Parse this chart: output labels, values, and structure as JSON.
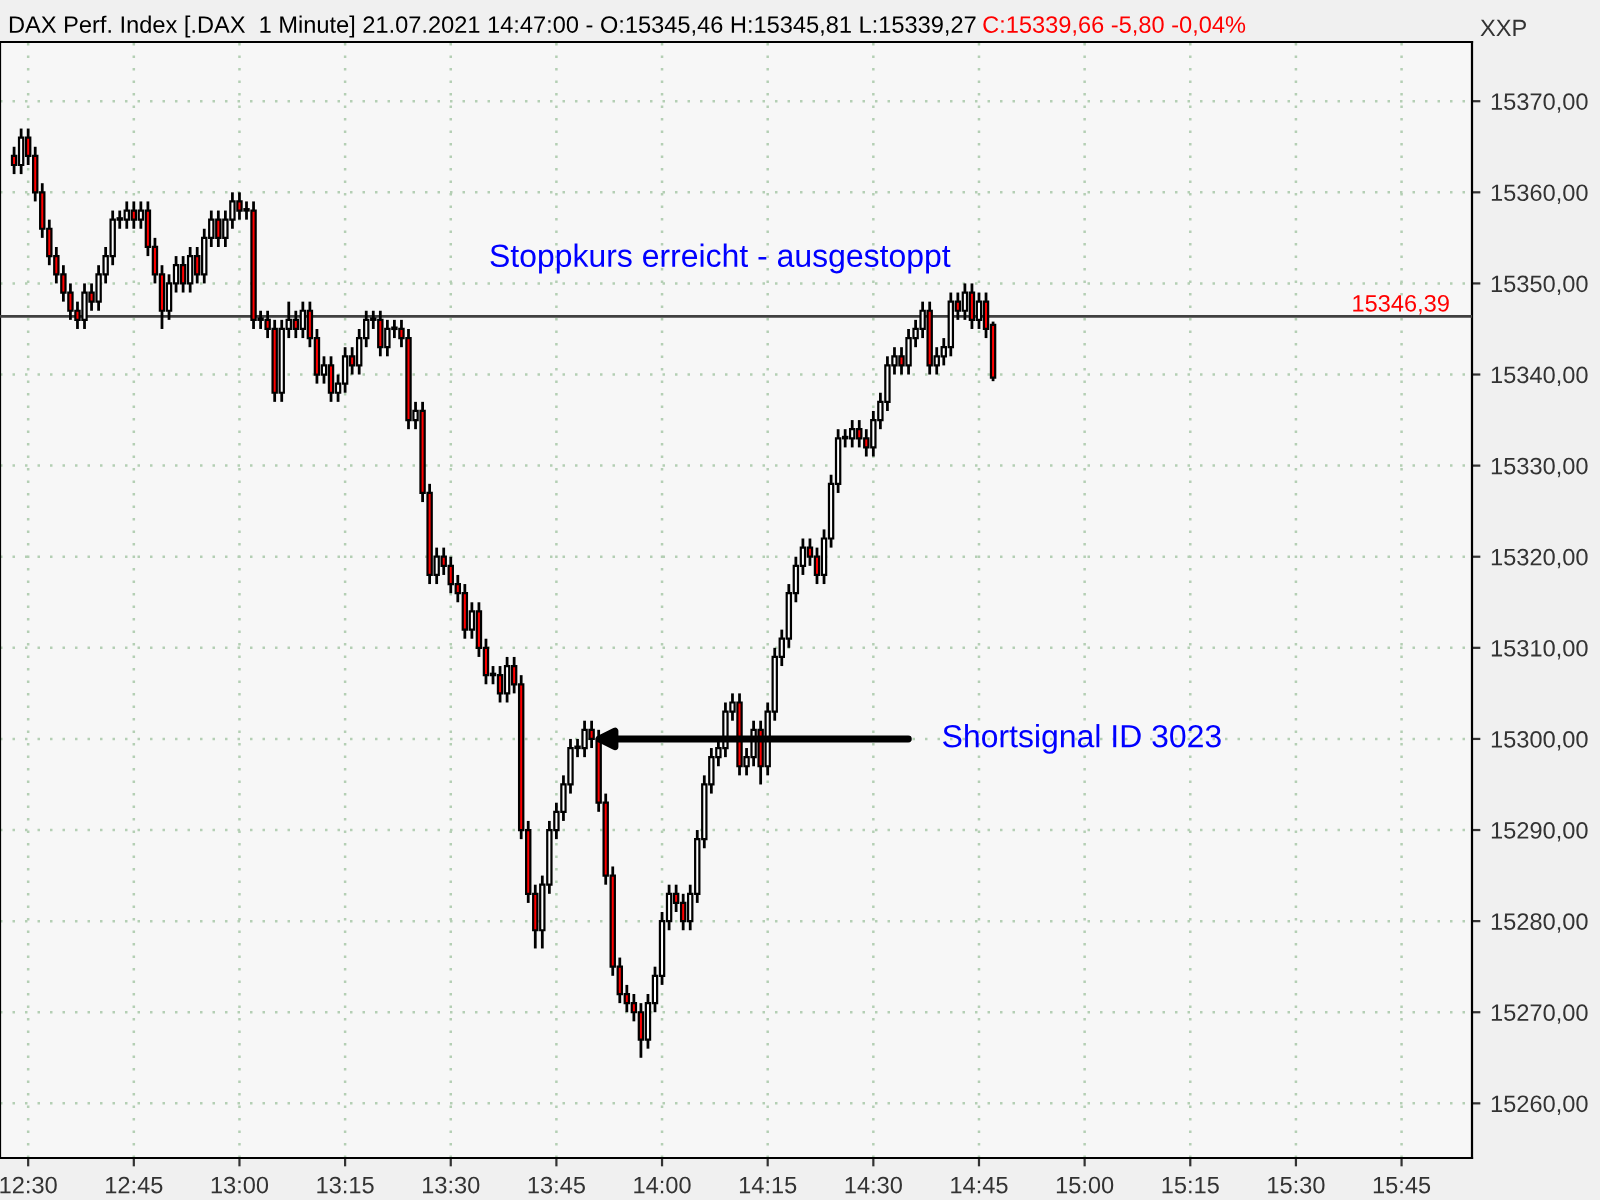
{
  "chart_data": {
    "type": "candlestick",
    "title": "DAX Perf. Index [.DAX  1 Minute] 21.07.2021 14:47:00 - O:15345,46 H:15345,81 L:15339,27",
    "subtitle": "C:15339,66 -5,80 -0,04%",
    "x": [
      "2021-07-21T12:28",
      "2021-07-21T12:29",
      "2021-07-21T12:30",
      "2021-07-21T12:31",
      "2021-07-21T12:32",
      "2021-07-21T12:33",
      "2021-07-21T12:34",
      "2021-07-21T12:35",
      "2021-07-21T12:36",
      "2021-07-21T12:37",
      "2021-07-21T12:38",
      "2021-07-21T12:39",
      "2021-07-21T12:40",
      "2021-07-21T12:41",
      "2021-07-21T12:42",
      "2021-07-21T12:43",
      "2021-07-21T12:44",
      "2021-07-21T12:45",
      "2021-07-21T12:46",
      "2021-07-21T12:47",
      "2021-07-21T12:48",
      "2021-07-21T12:49",
      "2021-07-21T12:50",
      "2021-07-21T12:51",
      "2021-07-21T12:52",
      "2021-07-21T12:53",
      "2021-07-21T12:54",
      "2021-07-21T12:55",
      "2021-07-21T12:56",
      "2021-07-21T12:57",
      "2021-07-21T12:58",
      "2021-07-21T12:59",
      "2021-07-21T13:00",
      "2021-07-21T13:01",
      "2021-07-21T13:02",
      "2021-07-21T13:03",
      "2021-07-21T13:04",
      "2021-07-21T13:05",
      "2021-07-21T13:06",
      "2021-07-21T13:07",
      "2021-07-21T13:08",
      "2021-07-21T13:09",
      "2021-07-21T13:10",
      "2021-07-21T13:11",
      "2021-07-21T13:12",
      "2021-07-21T13:13",
      "2021-07-21T13:14",
      "2021-07-21T13:15",
      "2021-07-21T13:16",
      "2021-07-21T13:17",
      "2021-07-21T13:18",
      "2021-07-21T13:19",
      "2021-07-21T13:20",
      "2021-07-21T13:21",
      "2021-07-21T13:22",
      "2021-07-21T13:23",
      "2021-07-21T13:24",
      "2021-07-21T13:25",
      "2021-07-21T13:26",
      "2021-07-21T13:27",
      "2021-07-21T13:28",
      "2021-07-21T13:29",
      "2021-07-21T13:30",
      "2021-07-21T13:31",
      "2021-07-21T13:32",
      "2021-07-21T13:33",
      "2021-07-21T13:34",
      "2021-07-21T13:35",
      "2021-07-21T13:36",
      "2021-07-21T13:37",
      "2021-07-21T13:38",
      "2021-07-21T13:39",
      "2021-07-21T13:40",
      "2021-07-21T13:41",
      "2021-07-21T13:42",
      "2021-07-21T13:43",
      "2021-07-21T13:44",
      "2021-07-21T13:45",
      "2021-07-21T13:46",
      "2021-07-21T13:47",
      "2021-07-21T13:48",
      "2021-07-21T13:49",
      "2021-07-21T13:50",
      "2021-07-21T13:51",
      "2021-07-21T13:52",
      "2021-07-21T13:53",
      "2021-07-21T13:54",
      "2021-07-21T13:55",
      "2021-07-21T13:56",
      "2021-07-21T13:57",
      "2021-07-21T13:58",
      "2021-07-21T13:59",
      "2021-07-21T14:00",
      "2021-07-21T14:01",
      "2021-07-21T14:02",
      "2021-07-21T14:03",
      "2021-07-21T14:04",
      "2021-07-21T14:05",
      "2021-07-21T14:06",
      "2021-07-21T14:07",
      "2021-07-21T14:08",
      "2021-07-21T14:09",
      "2021-07-21T14:10",
      "2021-07-21T14:11",
      "2021-07-21T14:12",
      "2021-07-21T14:13",
      "2021-07-21T14:14",
      "2021-07-21T14:15",
      "2021-07-21T14:16",
      "2021-07-21T14:17",
      "2021-07-21T14:18",
      "2021-07-21T14:19",
      "2021-07-21T14:20",
      "2021-07-21T14:21",
      "2021-07-21T14:22",
      "2021-07-21T14:23",
      "2021-07-21T14:24",
      "2021-07-21T14:25",
      "2021-07-21T14:26",
      "2021-07-21T14:27",
      "2021-07-21T14:28",
      "2021-07-21T14:29",
      "2021-07-21T14:30",
      "2021-07-21T14:31",
      "2021-07-21T14:32",
      "2021-07-21T14:33",
      "2021-07-21T14:34",
      "2021-07-21T14:35",
      "2021-07-21T14:36",
      "2021-07-21T14:37",
      "2021-07-21T14:38",
      "2021-07-21T14:39",
      "2021-07-21T14:40",
      "2021-07-21T14:41",
      "2021-07-21T14:42",
      "2021-07-21T14:43",
      "2021-07-21T14:44",
      "2021-07-21T14:45",
      "2021-07-21T14:46",
      "2021-07-21T14:47"
    ],
    "ohlc": [
      [
        15364,
        15365,
        15362,
        15363
      ],
      [
        15363,
        15367,
        15362,
        15366
      ],
      [
        15366,
        15367,
        15363,
        15364
      ],
      [
        15364,
        15365,
        15359,
        15360
      ],
      [
        15360,
        15361,
        15355,
        15356
      ],
      [
        15356,
        15357,
        15352,
        15353
      ],
      [
        15353,
        15354,
        15350,
        15351
      ],
      [
        15351,
        15352,
        15348,
        15349
      ],
      [
        15349,
        15350,
        15346,
        15347
      ],
      [
        15347,
        15348,
        15345,
        15346
      ],
      [
        15346,
        15350,
        15345,
        15349
      ],
      [
        15349,
        15350,
        15347,
        15348
      ],
      [
        15348,
        15352,
        15347,
        15351
      ],
      [
        15351,
        15354,
        15350,
        15353
      ],
      [
        15353,
        15358,
        15352,
        15357
      ],
      [
        15357,
        15358,
        15356,
        15357
      ],
      [
        15357,
        15359,
        15356,
        15358
      ],
      [
        15358,
        15359,
        15356,
        15357
      ],
      [
        15357,
        15359,
        15356,
        15358
      ],
      [
        15358,
        15359,
        15353,
        15354
      ],
      [
        15354,
        15355,
        15350,
        15351
      ],
      [
        15351,
        15352,
        15345,
        15347
      ],
      [
        15347,
        15351,
        15346,
        15350
      ],
      [
        15350,
        15353,
        15349,
        15352
      ],
      [
        15352,
        15353,
        15349,
        15350
      ],
      [
        15350,
        15354,
        15349,
        15353
      ],
      [
        15353,
        15354,
        15350,
        15351
      ],
      [
        15351,
        15356,
        15350,
        15355
      ],
      [
        15355,
        15358,
        15354,
        15357
      ],
      [
        15357,
        15358,
        15354,
        15355
      ],
      [
        15355,
        15358,
        15354,
        15357
      ],
      [
        15357,
        15360,
        15356,
        15359
      ],
      [
        15359,
        15360,
        15357,
        15358
      ],
      [
        15358,
        15359,
        15357,
        15358
      ],
      [
        15358,
        15359,
        15345,
        15346
      ],
      [
        15346,
        15347,
        15345,
        15346
      ],
      [
        15346,
        15347,
        15344,
        15345
      ],
      [
        15345,
        15346,
        15337,
        15338
      ],
      [
        15338,
        15346,
        15337,
        15345
      ],
      [
        15345,
        15348,
        15344,
        15346
      ],
      [
        15346,
        15347,
        15344,
        15345
      ],
      [
        15345,
        15348,
        15344,
        15347
      ],
      [
        15347,
        15348,
        15343,
        15344
      ],
      [
        15344,
        15345,
        15339,
        15340
      ],
      [
        15340,
        15342,
        15339,
        15341
      ],
      [
        15341,
        15342,
        15337,
        15338
      ],
      [
        15338,
        15340,
        15337,
        15339
      ],
      [
        15339,
        15343,
        15338,
        15342
      ],
      [
        15342,
        15343,
        15340,
        15341
      ],
      [
        15341,
        15345,
        15340,
        15344
      ],
      [
        15344,
        15347,
        15343,
        15346
      ],
      [
        15346,
        15347,
        15345,
        15346
      ],
      [
        15346,
        15347,
        15342,
        15343
      ],
      [
        15343,
        15346,
        15342,
        15345
      ],
      [
        15345,
        15346,
        15344,
        15345
      ],
      [
        15345,
        15346,
        15343,
        15344
      ],
      [
        15344,
        15345,
        15334,
        15335
      ],
      [
        15335,
        15337,
        15334,
        15336
      ],
      [
        15336,
        15337,
        15326,
        15327
      ],
      [
        15327,
        15328,
        15317,
        15318
      ],
      [
        15318,
        15321,
        15317,
        15320
      ],
      [
        15320,
        15321,
        15318,
        15319
      ],
      [
        15319,
        15320,
        15316,
        15317
      ],
      [
        15317,
        15318,
        15315,
        15316
      ],
      [
        15316,
        15317,
        15311,
        15312
      ],
      [
        15312,
        15315,
        15311,
        15314
      ],
      [
        15314,
        15315,
        15309,
        15310
      ],
      [
        15310,
        15311,
        15306,
        15307
      ],
      [
        15307,
        15308,
        15306,
        15307
      ],
      [
        15307,
        15308,
        15304,
        15305
      ],
      [
        15305,
        15309,
        15304,
        15308
      ],
      [
        15308,
        15309,
        15305,
        15306
      ],
      [
        15306,
        15307,
        15289,
        15290
      ],
      [
        15290,
        15291,
        15282,
        15283
      ],
      [
        15283,
        15284,
        15277,
        15279
      ],
      [
        15279,
        15285,
        15277,
        15284
      ],
      [
        15284,
        15291,
        15283,
        15290
      ],
      [
        15290,
        15293,
        15289,
        15292
      ],
      [
        15292,
        15296,
        15291,
        15295
      ],
      [
        15295,
        15300,
        15294,
        15299
      ],
      [
        15299,
        15300,
        15298,
        15299
      ],
      [
        15299,
        15302,
        15298,
        15301
      ],
      [
        15301,
        15302,
        15299,
        15300
      ],
      [
        15300,
        15301,
        15292,
        15293
      ],
      [
        15293,
        15294,
        15284,
        15285
      ],
      [
        15285,
        15286,
        15274,
        15275
      ],
      [
        15275,
        15276,
        15271,
        15272
      ],
      [
        15272,
        15273,
        15270,
        15271
      ],
      [
        15271,
        15272,
        15269,
        15270
      ],
      [
        15270,
        15271,
        15265,
        15267
      ],
      [
        15267,
        15272,
        15266,
        15271
      ],
      [
        15271,
        15275,
        15270,
        15274
      ],
      [
        15274,
        15281,
        15273,
        15280
      ],
      [
        15280,
        15284,
        15279,
        15283
      ],
      [
        15283,
        15284,
        15281,
        15282
      ],
      [
        15282,
        15283,
        15279,
        15280
      ],
      [
        15280,
        15284,
        15279,
        15283
      ],
      [
        15283,
        15290,
        15282,
        15289
      ],
      [
        15289,
        15296,
        15288,
        15295
      ],
      [
        15295,
        15299,
        15294,
        15298
      ],
      [
        15298,
        15300,
        15297,
        15299
      ],
      [
        15299,
        15304,
        15298,
        15303
      ],
      [
        15303,
        15305,
        15302,
        15304
      ],
      [
        15304,
        15305,
        15296,
        15297
      ],
      [
        15297,
        15299,
        15296,
        15298
      ],
      [
        15298,
        15302,
        15297,
        15301
      ],
      [
        15301,
        15302,
        15295,
        15297
      ],
      [
        15297,
        15304,
        15296,
        15303
      ],
      [
        15303,
        15310,
        15302,
        15309
      ],
      [
        15309,
        15312,
        15308,
        15311
      ],
      [
        15311,
        15317,
        15310,
        15316
      ],
      [
        15316,
        15320,
        15315,
        15319
      ],
      [
        15319,
        15322,
        15318,
        15321
      ],
      [
        15321,
        15322,
        15319,
        15320
      ],
      [
        15320,
        15321,
        15317,
        15318
      ],
      [
        15318,
        15323,
        15317,
        15322
      ],
      [
        15322,
        15329,
        15321,
        15328
      ],
      [
        15328,
        15334,
        15327,
        15333
      ],
      [
        15333,
        15334,
        15332,
        15333
      ],
      [
        15333,
        15335,
        15332,
        15334
      ],
      [
        15334,
        15335,
        15332,
        15333
      ],
      [
        15333,
        15334,
        15331,
        15332
      ],
      [
        15332,
        15336,
        15331,
        15335
      ],
      [
        15335,
        15338,
        15334,
        15337
      ],
      [
        15337,
        15342,
        15336,
        15341
      ],
      [
        15341,
        15343,
        15340,
        15342
      ],
      [
        15342,
        15343,
        15340,
        15341
      ],
      [
        15341,
        15345,
        15340,
        15344
      ],
      [
        15344,
        15346,
        15343,
        15345
      ],
      [
        15345,
        15348,
        15344,
        15347
      ],
      [
        15347,
        15348,
        15340,
        15341
      ],
      [
        15341,
        15343,
        15340,
        15342
      ],
      [
        15342,
        15344,
        15341,
        15343
      ],
      [
        15343,
        15349,
        15342,
        15348
      ],
      [
        15348,
        15349,
        15346,
        15347
      ],
      [
        15347,
        15350,
        15346,
        15349
      ],
      [
        15349,
        15350,
        15345,
        15346
      ],
      [
        15346,
        15349,
        15345,
        15348
      ],
      [
        15348,
        15349,
        15344,
        15345
      ],
      [
        15345.46,
        15345.81,
        15339.27,
        15339.66
      ]
    ],
    "colors": [
      "#ff0000",
      "#ffffff",
      "#ff0000",
      "#ff0000",
      "#ff0000",
      "#ff0000",
      "#ff0000",
      "#ff0000",
      "#ff0000",
      "#ff0000",
      "#ffffff",
      "#ff0000",
      "#ffffff",
      "#ffffff",
      "#ffffff",
      "#ffffff",
      "#ffffff",
      "#ff0000",
      "#ffffff",
      "#ff0000",
      "#ff0000",
      "#ff0000",
      "#ffffff",
      "#ffffff",
      "#ff0000",
      "#ffffff",
      "#ff0000",
      "#ffffff",
      "#ffffff",
      "#ff0000",
      "#ffffff",
      "#ffffff",
      "#ff0000",
      "#ffffff",
      "#ff0000",
      "#ffffff",
      "#ff0000",
      "#ff0000",
      "#ffffff",
      "#ffffff",
      "#ff0000",
      "#ffffff",
      "#ff0000",
      "#ff0000",
      "#ffffff",
      "#ff0000",
      "#ffffff",
      "#ffffff",
      "#ff0000",
      "#ffffff",
      "#ffffff",
      "#ffffff",
      "#ff0000",
      "#ffffff",
      "#ffffff",
      "#ff0000",
      "#ff0000",
      "#ffffff",
      "#ff0000",
      "#ff0000",
      "#ffffff",
      "#ff0000",
      "#ff0000",
      "#ff0000",
      "#ff0000",
      "#ffffff",
      "#ff0000",
      "#ff0000",
      "#ffffff",
      "#ff0000",
      "#ffffff",
      "#ff0000",
      "#ff0000",
      "#ff0000",
      "#ff0000",
      "#ffffff",
      "#ffffff",
      "#ffffff",
      "#ffffff",
      "#ffffff",
      "#ffffff",
      "#ffffff",
      "#ff0000",
      "#ff0000",
      "#ff0000",
      "#ff0000",
      "#ff0000",
      "#ff0000",
      "#ff0000",
      "#ff0000",
      "#ffffff",
      "#ffffff",
      "#ffffff",
      "#ffffff",
      "#ff0000",
      "#ff0000",
      "#ffffff",
      "#ffffff",
      "#ffffff",
      "#ffffff",
      "#ffffff",
      "#ffffff",
      "#ffffff",
      "#ff0000",
      "#ffffff",
      "#ffffff",
      "#ff0000",
      "#ffffff",
      "#ffffff",
      "#ffffff",
      "#ffffff",
      "#ffffff",
      "#ffffff",
      "#ff0000",
      "#ff0000",
      "#ffffff",
      "#ffffff",
      "#ffffff",
      "#ffffff",
      "#ffffff",
      "#ff0000",
      "#ff0000",
      "#ffffff",
      "#ffffff",
      "#ffffff",
      "#ffffff",
      "#ff0000",
      "#ffffff",
      "#ffffff",
      "#ffffff",
      "#ff0000",
      "#ffffff",
      "#ffffff",
      "#ffffff",
      "#ff0000",
      "#ffffff",
      "#ff0000",
      "#ffffff",
      "#ff0000",
      "#ff0000"
    ],
    "xlim": [
      "2021-07-21T12:26",
      "2021-07-21T15:55"
    ],
    "xticks": [
      {
        "value": "2021-07-21T12:30",
        "label": "12:30"
      },
      {
        "value": "2021-07-21T12:45",
        "label": "12:45"
      },
      {
        "value": "2021-07-21T13:00",
        "label": "13:00"
      },
      {
        "value": "2021-07-21T13:15",
        "label": "13:15"
      },
      {
        "value": "2021-07-21T13:30",
        "label": "13:30"
      },
      {
        "value": "2021-07-21T13:45",
        "label": "13:45"
      },
      {
        "value": "2021-07-21T14:00",
        "label": "14:00"
      },
      {
        "value": "2021-07-21T14:15",
        "label": "14:15"
      },
      {
        "value": "2021-07-21T14:30",
        "label": "14:30"
      },
      {
        "value": "2021-07-21T14:45",
        "label": "14:45"
      },
      {
        "value": "2021-07-21T15:00",
        "label": "15:00"
      },
      {
        "value": "2021-07-21T15:15",
        "label": "15:15"
      },
      {
        "value": "2021-07-21T15:30",
        "label": "15:30"
      },
      {
        "value": "2021-07-21T15:45",
        "label": "15:45"
      }
    ],
    "ylim": [
      15254,
      15376.5
    ],
    "yticks": [
      {
        "value": 15260,
        "label": "15260,00"
      },
      {
        "value": 15270,
        "label": "15270,00"
      },
      {
        "value": 15280,
        "label": "15280,00"
      },
      {
        "value": 15290,
        "label": "15290,00"
      },
      {
        "value": 15300,
        "label": "15300,00"
      },
      {
        "value": 15310,
        "label": "15310,00"
      },
      {
        "value": 15320,
        "label": "15320,00"
      },
      {
        "value": 15330,
        "label": "15330,00"
      },
      {
        "value": 15340,
        "label": "15340,00"
      },
      {
        "value": 15350,
        "label": "15350,00"
      },
      {
        "value": 15360,
        "label": "15360,00"
      },
      {
        "value": 15370,
        "label": "15370,00"
      }
    ],
    "grid": true,
    "ref_lines": [
      {
        "axis": "y",
        "value": 15346.39,
        "label": "15346,39",
        "color": "#404040"
      }
    ],
    "annotations": [
      "Stoppkurs erreicht - ausgestoppt",
      {
        "text": "Shortsignal ID 3023",
        "x": "2021-07-21T13:50",
        "y": 15300
      },
      "XXP"
    ]
  }
}
